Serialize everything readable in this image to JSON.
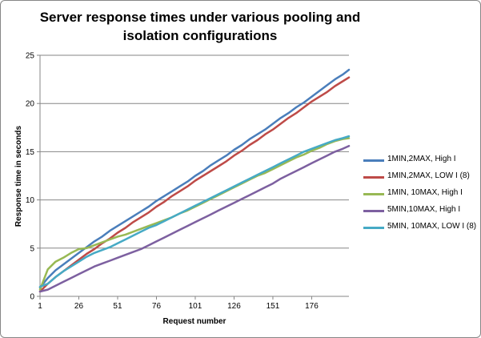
{
  "chart_data": {
    "type": "line",
    "title": "Server response times under various pooling and isolation configurations",
    "xlabel": "Request number",
    "ylabel": "Response time in seconds",
    "xlim": [
      1,
      200
    ],
    "ylim": [
      0,
      25
    ],
    "yticks": [
      0,
      5,
      10,
      15,
      20,
      25
    ],
    "xticks": [
      "1",
      "26",
      "51",
      "76",
      "101",
      "126",
      "151",
      "176"
    ],
    "grid": "horizontal",
    "legend_position": "right",
    "x": [
      1,
      6,
      11,
      16,
      21,
      26,
      31,
      36,
      41,
      46,
      51,
      56,
      61,
      66,
      71,
      76,
      81,
      86,
      91,
      96,
      101,
      106,
      111,
      116,
      121,
      126,
      131,
      136,
      141,
      146,
      151,
      156,
      161,
      166,
      171,
      176,
      181,
      186,
      191,
      196,
      200
    ],
    "series": [
      {
        "name": "1MIN,2MAX, High I",
        "color": "#4a7ebb",
        "values": [
          0.9,
          1.9,
          2.7,
          3.3,
          3.9,
          4.5,
          5.1,
          5.7,
          6.2,
          6.8,
          7.3,
          7.8,
          8.3,
          8.8,
          9.3,
          9.9,
          10.4,
          10.9,
          11.4,
          11.9,
          12.5,
          13.0,
          13.6,
          14.1,
          14.6,
          15.2,
          15.7,
          16.3,
          16.8,
          17.3,
          17.9,
          18.5,
          19.0,
          19.6,
          20.1,
          20.7,
          21.3,
          21.9,
          22.5,
          23.0,
          23.5
        ]
      },
      {
        "name": "1MIN,2MAX, LOW I (8)",
        "color": "#be4b48",
        "values": [
          0.5,
          1.3,
          2.0,
          2.6,
          3.2,
          3.8,
          4.4,
          4.9,
          5.5,
          6.0,
          6.6,
          7.1,
          7.7,
          8.2,
          8.7,
          9.3,
          9.8,
          10.4,
          10.9,
          11.4,
          12.0,
          12.5,
          13.0,
          13.5,
          14.0,
          14.6,
          15.1,
          15.7,
          16.2,
          16.8,
          17.3,
          17.9,
          18.5,
          19.0,
          19.6,
          20.2,
          20.7,
          21.2,
          21.8,
          22.3,
          22.7
        ]
      },
      {
        "name": "1MIN, 10MAX, High I",
        "color": "#98b954",
        "values": [
          0.7,
          2.8,
          3.6,
          4.0,
          4.5,
          4.9,
          5.0,
          5.3,
          5.6,
          5.9,
          6.2,
          6.4,
          6.7,
          7.0,
          7.3,
          7.6,
          7.9,
          8.2,
          8.6,
          8.9,
          9.3,
          9.7,
          10.1,
          10.5,
          10.9,
          11.3,
          11.7,
          12.1,
          12.5,
          12.8,
          13.2,
          13.6,
          14.0,
          14.4,
          14.7,
          15.1,
          15.4,
          15.8,
          16.1,
          16.3,
          16.4
        ]
      },
      {
        "name": "5MIN,10MAX, High I",
        "color": "#7d60a0",
        "values": [
          0.5,
          0.7,
          1.1,
          1.5,
          1.9,
          2.3,
          2.7,
          3.1,
          3.4,
          3.7,
          4.0,
          4.3,
          4.6,
          4.9,
          5.3,
          5.7,
          6.1,
          6.5,
          6.9,
          7.3,
          7.7,
          8.1,
          8.5,
          8.9,
          9.3,
          9.7,
          10.1,
          10.5,
          10.9,
          11.3,
          11.7,
          12.2,
          12.6,
          13.0,
          13.4,
          13.8,
          14.2,
          14.6,
          15.0,
          15.3,
          15.6
        ]
      },
      {
        "name": "5MIN, 10MAX, LOW I (8)",
        "color": "#46aac5",
        "values": [
          1.0,
          1.3,
          2.0,
          2.6,
          3.1,
          3.6,
          4.1,
          4.5,
          4.8,
          5.1,
          5.5,
          5.9,
          6.3,
          6.7,
          7.1,
          7.4,
          7.8,
          8.2,
          8.6,
          9.0,
          9.4,
          9.8,
          10.2,
          10.6,
          11.0,
          11.4,
          11.8,
          12.2,
          12.6,
          13.0,
          13.4,
          13.8,
          14.2,
          14.6,
          15.0,
          15.3,
          15.6,
          15.9,
          16.2,
          16.4,
          16.6
        ]
      }
    ]
  }
}
